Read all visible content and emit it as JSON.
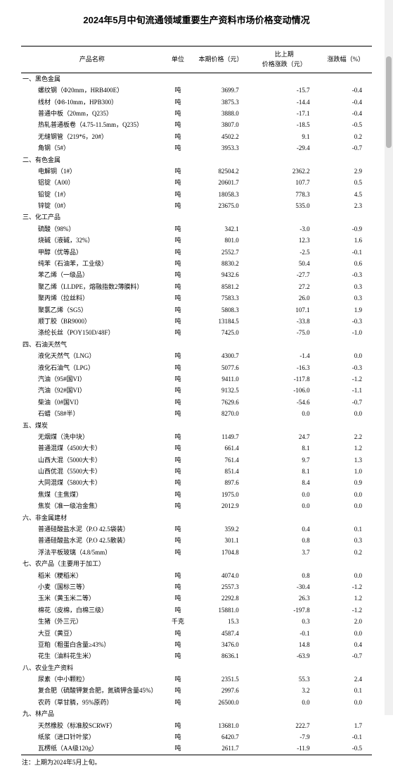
{
  "title": "2024年5月中旬流通领域重要生产资料市场价格变动情况",
  "headers": {
    "name": "产品名称",
    "unit": "单位",
    "price": "本期价格（元）",
    "diff": "比上期\n价格涨跌（元）",
    "pct": "涨跌幅（%）"
  },
  "footnote": "注：上期为2024年5月上旬。",
  "sections": [
    {
      "label": "一、黑色金属",
      "rows": [
        {
          "name": "螺纹钢（Φ20mm，HRB400E）",
          "unit": "吨",
          "price": "3699.7",
          "diff": "-15.7",
          "pct": "-0.4"
        },
        {
          "name": "线材（Φ8-10mm，HPB300）",
          "unit": "吨",
          "price": "3875.3",
          "diff": "-14.4",
          "pct": "-0.4"
        },
        {
          "name": "普通中板（20mm，Q235）",
          "unit": "吨",
          "price": "3888.0",
          "diff": "-17.1",
          "pct": "-0.4"
        },
        {
          "name": "热轧普通板卷（4.75-11.5mm，Q235）",
          "unit": "吨",
          "price": "3807.0",
          "diff": "-18.5",
          "pct": "-0.5"
        },
        {
          "name": "无缝钢管（219*6，20#）",
          "unit": "吨",
          "price": "4502.2",
          "diff": "9.1",
          "pct": "0.2"
        },
        {
          "name": "角钢（5#）",
          "unit": "吨",
          "price": "3953.3",
          "diff": "-29.4",
          "pct": "-0.7"
        }
      ]
    },
    {
      "label": "二、有色金属",
      "rows": [
        {
          "name": "电解铜（1#）",
          "unit": "吨",
          "price": "82504.2",
          "diff": "2362.2",
          "pct": "2.9"
        },
        {
          "name": "铝锭（A00）",
          "unit": "吨",
          "price": "20601.7",
          "diff": "107.7",
          "pct": "0.5"
        },
        {
          "name": "铅锭（1#）",
          "unit": "吨",
          "price": "18058.3",
          "diff": "778.3",
          "pct": "4.5"
        },
        {
          "name": "锌锭（0#）",
          "unit": "吨",
          "price": "23675.0",
          "diff": "535.0",
          "pct": "2.3"
        }
      ]
    },
    {
      "label": "三、化工产品",
      "rows": [
        {
          "name": "硫酸（98%）",
          "unit": "吨",
          "price": "342.1",
          "diff": "-3.0",
          "pct": "-0.9"
        },
        {
          "name": "烧碱（液碱，32%）",
          "unit": "吨",
          "price": "801.0",
          "diff": "12.3",
          "pct": "1.6"
        },
        {
          "name": "甲醇（优等品）",
          "unit": "吨",
          "price": "2552.7",
          "diff": "-2.5",
          "pct": "-0.1"
        },
        {
          "name": "纯苯（石油苯，工业级）",
          "unit": "吨",
          "price": "8830.2",
          "diff": "50.4",
          "pct": "0.6"
        },
        {
          "name": "苯乙烯（一级品）",
          "unit": "吨",
          "price": "9432.6",
          "diff": "-27.7",
          "pct": "-0.3"
        },
        {
          "name": "聚乙烯（LLDPE，熔融指数2薄膜料）",
          "unit": "吨",
          "price": "8581.2",
          "diff": "27.2",
          "pct": "0.3"
        },
        {
          "name": "聚丙烯（拉丝料）",
          "unit": "吨",
          "price": "7583.3",
          "diff": "26.0",
          "pct": "0.3"
        },
        {
          "name": "聚氯乙烯（SG5）",
          "unit": "吨",
          "price": "5808.3",
          "diff": "107.1",
          "pct": "1.9"
        },
        {
          "name": "顺丁胶（BR9000）",
          "unit": "吨",
          "price": "13184.5",
          "diff": "-33.8",
          "pct": "-0.3"
        },
        {
          "name": "涤纶长丝（POY150D/48F）",
          "unit": "吨",
          "price": "7425.0",
          "diff": "-75.0",
          "pct": "-1.0"
        }
      ]
    },
    {
      "label": "四、石油天然气",
      "rows": [
        {
          "name": "液化天然气（LNG）",
          "unit": "吨",
          "price": "4300.7",
          "diff": "-1.4",
          "pct": "0.0"
        },
        {
          "name": "液化石油气（LPG）",
          "unit": "吨",
          "price": "5077.6",
          "diff": "-16.3",
          "pct": "-0.3"
        },
        {
          "name": "汽油（95#国VI）",
          "unit": "吨",
          "price": "9411.0",
          "diff": "-117.8",
          "pct": "-1.2"
        },
        {
          "name": "汽油（92#国VI）",
          "unit": "吨",
          "price": "9132.5",
          "diff": "-106.0",
          "pct": "-1.1"
        },
        {
          "name": "柴油（0#国VI）",
          "unit": "吨",
          "price": "7629.6",
          "diff": "-54.6",
          "pct": "-0.7"
        },
        {
          "name": "石蜡（58#半）",
          "unit": "吨",
          "price": "8270.0",
          "diff": "0.0",
          "pct": "0.0"
        }
      ]
    },
    {
      "label": "五、煤炭",
      "rows": [
        {
          "name": "无烟煤（洗中块）",
          "unit": "吨",
          "price": "1149.7",
          "diff": "24.7",
          "pct": "2.2"
        },
        {
          "name": "普通混煤（4500大卡）",
          "unit": "吨",
          "price": "661.4",
          "diff": "8.1",
          "pct": "1.2"
        },
        {
          "name": "山西大混（5000大卡）",
          "unit": "吨",
          "price": "761.4",
          "diff": "9.7",
          "pct": "1.3"
        },
        {
          "name": "山西优混（5500大卡）",
          "unit": "吨",
          "price": "851.4",
          "diff": "8.1",
          "pct": "1.0"
        },
        {
          "name": "大同混煤（5800大卡）",
          "unit": "吨",
          "price": "897.6",
          "diff": "8.4",
          "pct": "0.9"
        },
        {
          "name": "焦煤（主焦煤）",
          "unit": "吨",
          "price": "1975.0",
          "diff": "0.0",
          "pct": "0.0"
        },
        {
          "name": "焦炭（准一级冶金焦）",
          "unit": "吨",
          "price": "2012.9",
          "diff": "0.0",
          "pct": "0.0"
        }
      ]
    },
    {
      "label": "六、非金属建材",
      "rows": [
        {
          "name": "普通硅酸盐水泥（P.O 42.5袋装）",
          "unit": "吨",
          "price": "359.2",
          "diff": "0.4",
          "pct": "0.1"
        },
        {
          "name": "普通硅酸盐水泥（P.O 42.5散装）",
          "unit": "吨",
          "price": "301.1",
          "diff": "0.8",
          "pct": "0.3"
        },
        {
          "name": "浮法平板玻璃（4.8/5mm）",
          "unit": "吨",
          "price": "1704.8",
          "diff": "3.7",
          "pct": "0.2"
        }
      ]
    },
    {
      "label": "七、农产品（主要用于加工）",
      "rows": [
        {
          "name": "稻米（粳稻米）",
          "unit": "吨",
          "price": "4074.0",
          "diff": "0.8",
          "pct": "0.0"
        },
        {
          "name": "小麦（国标三等）",
          "unit": "吨",
          "price": "2557.3",
          "diff": "-30.4",
          "pct": "-1.2"
        },
        {
          "name": "玉米（黄玉米二等）",
          "unit": "吨",
          "price": "2292.8",
          "diff": "26.3",
          "pct": "1.2"
        },
        {
          "name": "棉花（皮棉，白棉三级）",
          "unit": "吨",
          "price": "15881.0",
          "diff": "-197.8",
          "pct": "-1.2"
        },
        {
          "name": "生猪（外三元）",
          "unit": "千克",
          "price": "15.3",
          "diff": "0.3",
          "pct": "2.0"
        },
        {
          "name": "大豆（黄豆）",
          "unit": "吨",
          "price": "4587.4",
          "diff": "-0.1",
          "pct": "0.0"
        },
        {
          "name": "豆粕（粗蛋白含量≥43%）",
          "unit": "吨",
          "price": "3476.0",
          "diff": "14.8",
          "pct": "0.4"
        },
        {
          "name": "花生（油料花生米）",
          "unit": "吨",
          "price": "8636.1",
          "diff": "-63.9",
          "pct": "-0.7"
        }
      ]
    },
    {
      "label": "八、农业生产资料",
      "rows": [
        {
          "name": "尿素（中小颗粒）",
          "unit": "吨",
          "price": "2351.5",
          "diff": "55.3",
          "pct": "2.4"
        },
        {
          "name": "复合肥（硫酸钾复合肥，氮磷钾含量45%）",
          "unit": "吨",
          "price": "2997.6",
          "diff": "3.2",
          "pct": "0.1"
        },
        {
          "name": "农药（草甘膦，95%原药）",
          "unit": "吨",
          "price": "26500.0",
          "diff": "0.0",
          "pct": "0.0"
        }
      ]
    },
    {
      "label": "九、林产品",
      "rows": [
        {
          "name": "天然橡胶（标准胶SCRWF）",
          "unit": "吨",
          "price": "13681.0",
          "diff": "222.7",
          "pct": "1.7"
        },
        {
          "name": "纸浆（进口针叶浆）",
          "unit": "吨",
          "price": "6420.7",
          "diff": "-7.9",
          "pct": "-0.1"
        },
        {
          "name": "瓦楞纸（AA级120g）",
          "unit": "吨",
          "price": "2611.7",
          "diff": "-11.9",
          "pct": "-0.5"
        }
      ]
    }
  ]
}
